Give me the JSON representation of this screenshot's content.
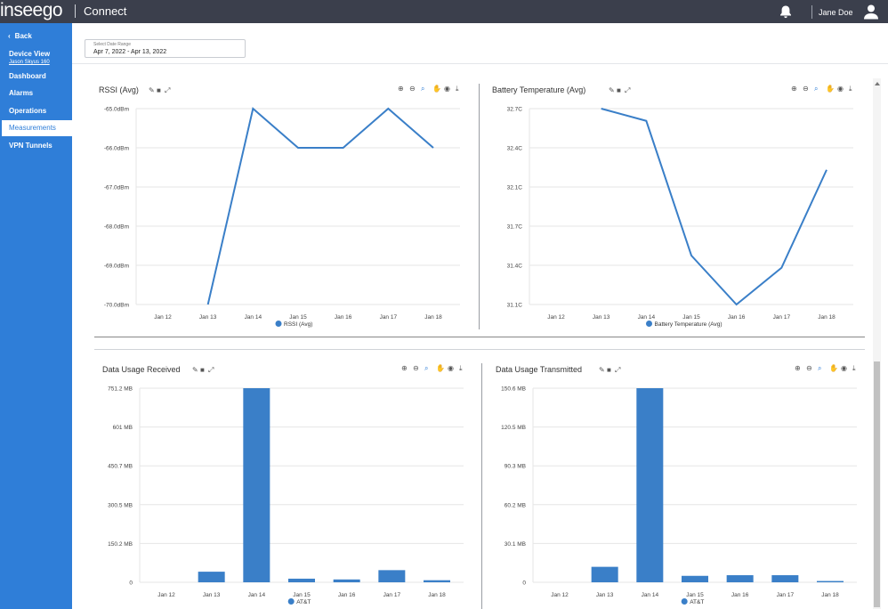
{
  "header": {
    "logo": "inseego",
    "app_name": "Connect",
    "user_name": "Jane Doe"
  },
  "sidebar": {
    "back_label": "Back",
    "device_title": "Device View",
    "device_name": "Jason Skyus 160",
    "items": [
      {
        "label": "Dashboard",
        "active": false
      },
      {
        "label": "Alarms",
        "active": false
      },
      {
        "label": "Operations",
        "active": false
      },
      {
        "label": "Measurements",
        "active": true
      },
      {
        "label": "VPN Tunnels",
        "active": false
      }
    ]
  },
  "date_range": {
    "label": "Select Date Range",
    "value": "Apr 7, 2022 - Apr 13, 2022"
  },
  "colors": {
    "accent": "#2f7ed8",
    "topbar": "#3b3f4c",
    "series": "#3a7fc8"
  },
  "toolbar_icons": [
    "zoom-in-icon",
    "zoom-out-icon",
    "zoom-search-icon",
    "pan-hand-icon",
    "eye-icon",
    "download-icon"
  ],
  "chart_data": [
    {
      "id": "rssi",
      "type": "line",
      "title": "RSSI (Avg)",
      "categories": [
        "Jan 12",
        "Jan 13",
        "Jan 14",
        "Jan 15",
        "Jan 16",
        "Jan 17",
        "Jan 18"
      ],
      "series": [
        {
          "name": "RSSI (Avg)",
          "values": [
            null,
            -70.0,
            -65.0,
            -66.0,
            -66.0,
            -65.0,
            -66.0
          ]
        }
      ],
      "yticks": [
        "-65.0dBm",
        "-66.0dBm",
        "-67.0dBm",
        "-68.0dBm",
        "-69.0dBm",
        "-70.0dBm"
      ],
      "ylim": [
        -70.0,
        -65.0
      ],
      "legend": "bottom",
      "grid": true
    },
    {
      "id": "battery",
      "type": "line",
      "title": "Battery Temperature (Avg)",
      "categories": [
        "Jan 12",
        "Jan 13",
        "Jan 14",
        "Jan 15",
        "Jan 16",
        "Jan 17",
        "Jan 18"
      ],
      "series": [
        {
          "name": "Battery Temperature (Avg)",
          "values": [
            null,
            32.7,
            32.6,
            31.5,
            31.1,
            31.4,
            32.2
          ]
        }
      ],
      "yticks": [
        "32.7C",
        "32.4C",
        "32.1C",
        "31.7C",
        "31.4C",
        "31.1C"
      ],
      "ylim": [
        31.1,
        32.7
      ],
      "legend": "bottom",
      "grid": true
    },
    {
      "id": "received",
      "type": "bar",
      "title": "Data Usage Received",
      "categories": [
        "Jan 12",
        "Jan 13",
        "Jan 14",
        "Jan 15",
        "Jan 16",
        "Jan 17",
        "Jan 18"
      ],
      "series": [
        {
          "name": "AT&T",
          "values": [
            0,
            41,
            751.2,
            14,
            11,
            47,
            8
          ]
        }
      ],
      "yticks": [
        "751.2 MB",
        "601 MB",
        "450.7 MB",
        "300.5 MB",
        "150.2 MB",
        "0"
      ],
      "ylim": [
        0,
        751.2
      ],
      "legend": "bottom",
      "grid": true
    },
    {
      "id": "transmitted",
      "type": "bar",
      "title": "Data Usage Transmitted",
      "categories": [
        "Jan 12",
        "Jan 13",
        "Jan 14",
        "Jan 15",
        "Jan 16",
        "Jan 17",
        "Jan 18"
      ],
      "series": [
        {
          "name": "AT&T",
          "values": [
            0,
            12,
            150.6,
            5,
            5.5,
            5.5,
            1
          ]
        }
      ],
      "yticks": [
        "150.6 MB",
        "120.5 MB",
        "90.3 MB",
        "60.2 MB",
        "30.1 MB",
        "0"
      ],
      "ylim": [
        0,
        150.6
      ],
      "legend": "bottom",
      "grid": true
    }
  ]
}
